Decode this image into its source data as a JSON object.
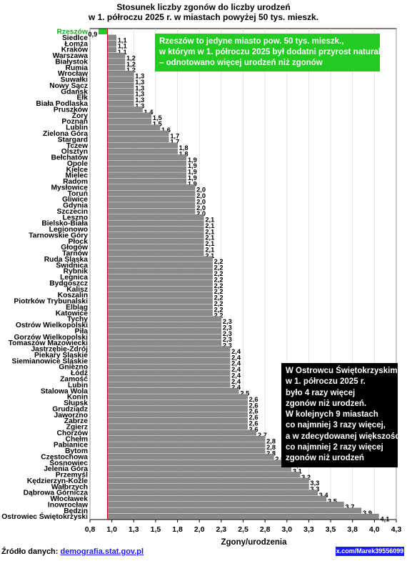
{
  "chart_data": {
    "type": "bar",
    "orientation": "horizontal",
    "title": "Stosunek liczby zgonów do liczby urodzeń",
    "subtitle": "w 1. półroczu 2025 r. w miastach powyżej 50 tys. mieszk.",
    "xlabel": "Zgony/urodzenia",
    "xlim": [
      0.8,
      4.3
    ],
    "xticks": [
      "0,8",
      "1,0",
      "1,3",
      "1,5",
      "1,8",
      "2,0",
      "2,3",
      "2,5",
      "2,8",
      "3,0",
      "3,3",
      "3,5",
      "3,8",
      "4,0",
      "4,3"
    ],
    "baseline": 1.0,
    "categories": [
      "Rzeszów",
      "Siedlce",
      "Łomża",
      "Kraków",
      "Warszawa",
      "Białystok",
      "Rumia",
      "Wrocław",
      "Suwałki",
      "Nowy Sącz",
      "Gdańsk",
      "Ełk",
      "Biała Podlaska",
      "Pruszków",
      "Żory",
      "Poznań",
      "Lublin",
      "Zielona Góra",
      "Stargard",
      "Tczew",
      "Olsztyn",
      "Bełchatów",
      "Opole",
      "Kielce",
      "Mielec",
      "Radom",
      "Mysłowice",
      "Toruń",
      "Gliwice",
      "Gdynia",
      "Szczecin",
      "Leszno",
      "Bielsko-Biała",
      "Legionowo",
      "Tarnowskie Góry",
      "Płock",
      "Głogów",
      "Tarnów",
      "Ruda Śląska",
      "Świdnica",
      "Rybnik",
      "Legnica",
      "Bydgoszcz",
      "Kalisz",
      "Koszalin",
      "Piotrków Trybunalski",
      "Elbląg",
      "Katowice",
      "Tychy",
      "Ostrów Wielkopolski",
      "Piła",
      "Gorzów Wielkopolski",
      "Tomaszów Mazowiecki",
      "Jastrzębie-Zdrój",
      "Piekary Śląskie",
      "Siemianowice Śląskie",
      "Gniezno",
      "Łódź",
      "Zamość",
      "Lubin",
      "Stalowa Wola",
      "Konin",
      "Słupsk",
      "Grudziądz",
      "Jaworzno",
      "Zabrze",
      "Zgierz",
      "Chorzów",
      "Chełm",
      "Pabianice",
      "Bytom",
      "Częstochowa",
      "Sosnowiec",
      "Jelenia Góra",
      "Przemyśl",
      "Kędzierzyn-Koźle",
      "Wałbrzych",
      "Dąbrowa Górnicza",
      "Włocławek",
      "Inowrocław",
      "Będzin",
      "Ostrowiec Świętokrzyski"
    ],
    "values": [
      0.9,
      1.1,
      1.1,
      1.1,
      1.2,
      1.2,
      1.2,
      1.3,
      1.3,
      1.3,
      1.3,
      1.3,
      1.3,
      1.4,
      1.5,
      1.5,
      1.6,
      1.7,
      1.7,
      1.8,
      1.8,
      1.9,
      1.9,
      1.9,
      1.9,
      1.9,
      2.0,
      2.0,
      2.0,
      2.0,
      2.0,
      2.1,
      2.1,
      2.1,
      2.1,
      2.1,
      2.1,
      2.1,
      2.2,
      2.2,
      2.2,
      2.2,
      2.2,
      2.2,
      2.2,
      2.2,
      2.2,
      2.2,
      2.3,
      2.3,
      2.3,
      2.3,
      2.3,
      2.4,
      2.4,
      2.4,
      2.4,
      2.4,
      2.4,
      2.4,
      2.5,
      2.6,
      2.6,
      2.6,
      2.6,
      2.6,
      2.6,
      2.7,
      2.8,
      2.8,
      2.8,
      2.9,
      3.1,
      3.1,
      3.2,
      3.3,
      3.3,
      3.4,
      3.5,
      3.7,
      3.9,
      4.1
    ],
    "value_labels": [
      "0,9",
      "1,1",
      "1,1",
      "1,1",
      "1,2",
      "1,2",
      "1,2",
      "1,3",
      "1,3",
      "1,3",
      "1,3",
      "1,3",
      "1,3",
      "1,4",
      "1,5",
      "1,5",
      "1,6",
      "1,7",
      "1,7",
      "1,8",
      "1,8",
      "1,9",
      "1,9",
      "1,9",
      "1,9",
      "1,9",
      "2,0",
      "2,0",
      "2,0",
      "2,0",
      "2,0",
      "2,1",
      "2,1",
      "2,1",
      "2,1",
      "2,1",
      "2,1",
      "2,1",
      "2,2",
      "2,2",
      "2,2",
      "2,2",
      "2,2",
      "2,2",
      "2,2",
      "2,2",
      "2,2",
      "2,2",
      "2,3",
      "2,3",
      "2,3",
      "2,3",
      "2,3",
      "2,4",
      "2,4",
      "2,4",
      "2,4",
      "2,4",
      "2,4",
      "2,4",
      "2,5",
      "2,6",
      "2,6",
      "2,6",
      "2,6",
      "2,6",
      "2,6",
      "2,7",
      "2,8",
      "2,8",
      "2,8",
      "2,9",
      "3,1",
      "3,1",
      "3,2",
      "3,3",
      "3,3",
      "3,4",
      "3,5",
      "3,7",
      "3,9",
      "4,1"
    ],
    "colors": {
      "bar": "#8a8a8a",
      "highlight": "#22cc22",
      "highlight_label": "#22aa22",
      "baseline": "#cc0000",
      "grid": "#d8d8d8"
    },
    "grid": true,
    "highlight_category": "Rzeszów"
  },
  "annotations": {
    "green": [
      "Rzeszów to jedyne miasto pow. 50 tys. mieszk.,",
      "w którym w 1. półroczu 2025 był dodatni przyrost naturalny",
      "– odnotowano więcej urodzeń niż zgonów"
    ],
    "black": [
      "W Ostrowcu Świętokrzyskim",
      "w 1. półroczu 2025 r.",
      "było 4 razy więcej",
      "zgonów niż urodzeń.",
      "W kolejnych 9 miastach",
      "co najmniej 3 razy więcej,",
      "a w zdecydowanej większości",
      "co najmniej 2 razy więcej",
      "zgonów niż urodzeń"
    ]
  },
  "footer": {
    "source_prefix": "Źródło danych:",
    "source_link": "demografia.stat.gov.pl",
    "watermark": "x.com/Marek39556099"
  }
}
